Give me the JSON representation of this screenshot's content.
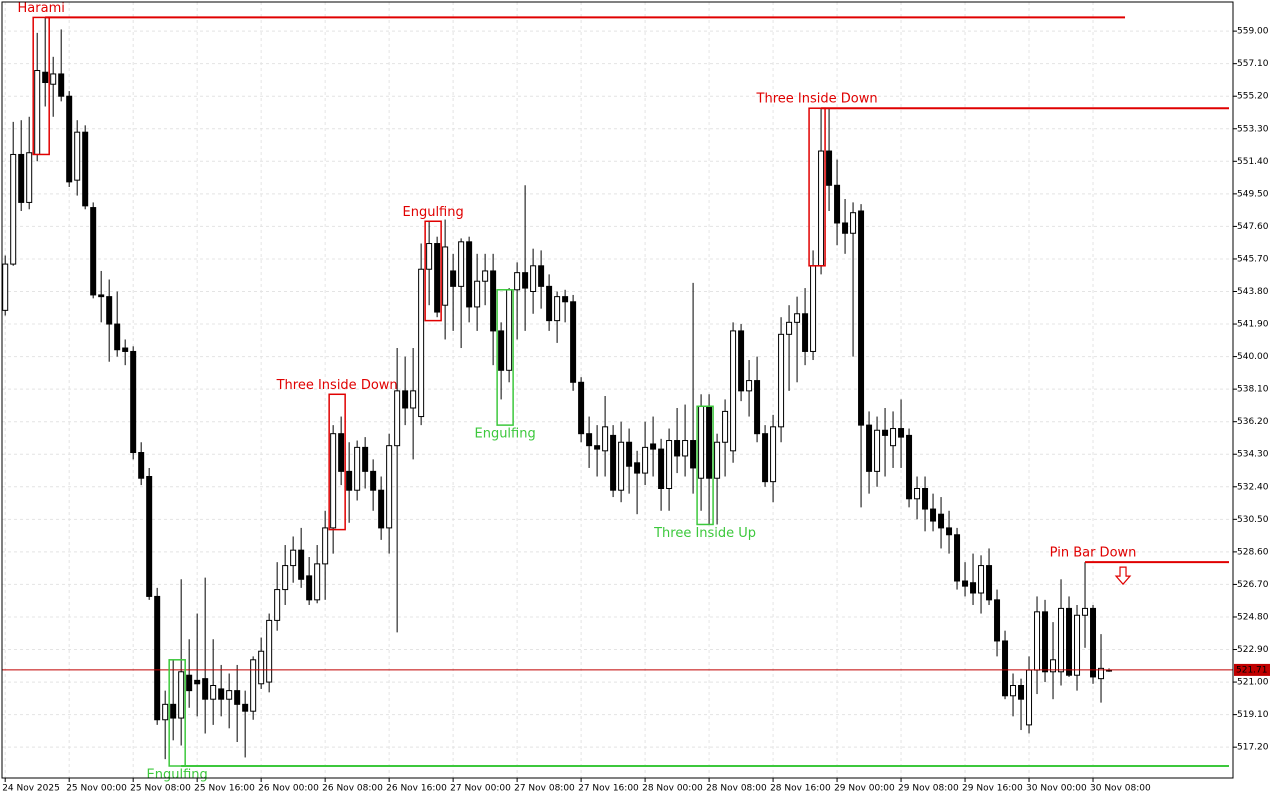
{
  "chart_data": {
    "type": "candlestick",
    "open": [
      542.7,
      545.4,
      551.8,
      549.0,
      551.8,
      556.6,
      555.9,
      556.5,
      555.2,
      550.3,
      553.1,
      548.7,
      543.6,
      543.5,
      541.9,
      540.5,
      540.3,
      534.4,
      533.0,
      526.0,
      518.8,
      519.7,
      518.9,
      521.4,
      521.1,
      521.2,
      520.0,
      520.6,
      520.0,
      520.5,
      519.7,
      519.3,
      520.9,
      521.0,
      524.6,
      526.4,
      527.8,
      528.7,
      527.2,
      525.8,
      527.9,
      530.0,
      535.5,
      533.3,
      532.2,
      534.7,
      533.3,
      532.2,
      530.0,
      534.8,
      538.0,
      537.0,
      536.5,
      545.1,
      546.6,
      543.0,
      545.0,
      544.1,
      546.7,
      542.9,
      544.4,
      545.0,
      541.5,
      539.2,
      543.9,
      544.9,
      543.8,
      545.3,
      544.1,
      542.1,
      543.5,
      543.2,
      538.5,
      535.5,
      534.8,
      534.5,
      535.4,
      532.2,
      535.0,
      533.8,
      533.2,
      534.9,
      534.6,
      532.3,
      535.1,
      534.2,
      535.1,
      532.9,
      537.1,
      532.9,
      535.0,
      534.5,
      541.5,
      538.0,
      538.6,
      535.5,
      532.7,
      535.9,
      541.3,
      542.0,
      542.5,
      540.3,
      545.3,
      552.0,
      550.0,
      547.8,
      547.2,
      548.5,
      536.0,
      533.3,
      535.7,
      534.8,
      535.8,
      535.4,
      531.7,
      532.3,
      531.1,
      530.8,
      530.0,
      529.6,
      526.9,
      526.8,
      526.2,
      527.8,
      525.8,
      523.4,
      520.2,
      520.8,
      518.5,
      521.7,
      525.1,
      521.6,
      521.6,
      525.3,
      521.4,
      524.9,
      525.3,
      521.2,
      521.7
    ],
    "high": [
      545.9,
      553.7,
      553.8,
      554.0,
      558.9,
      559.8,
      557.5,
      559.1,
      555.5,
      553.8,
      553.5,
      549.0,
      545.0,
      544.5,
      543.8,
      541.0,
      540.6,
      535.0,
      533.5,
      526.5,
      520.5,
      522.3,
      527.0,
      523.5,
      525.0,
      527.1,
      523.5,
      522.0,
      521.5,
      522.0,
      520.5,
      522.5,
      523.6,
      525.0,
      528.0,
      529.0,
      529.5,
      530.0,
      528.3,
      529.0,
      531.0,
      536.0,
      536.5,
      535.0,
      535.1,
      535.3,
      534.0,
      533.0,
      535.5,
      540.5,
      540.0,
      540.5,
      546.6,
      547.9,
      547.0,
      548.0,
      546.0,
      546.9,
      547.0,
      546.0,
      546.0,
      546.0,
      542.0,
      544.0,
      545.5,
      550.0,
      546.3,
      546.2,
      544.8,
      543.8,
      543.9,
      543.6,
      538.8,
      536.5,
      536.0,
      537.7,
      536.0,
      536.2,
      535.8,
      534.5,
      536.2,
      536.5,
      535.2,
      535.8,
      537.0,
      537.2,
      544.3,
      537.8,
      537.8,
      535.5,
      537.5,
      542.0,
      541.9,
      539.8,
      540.0,
      536.0,
      536.6,
      542.3,
      543.0,
      543.5,
      544.0,
      546.2,
      554.5,
      554.5,
      551.5,
      549.2,
      549.0,
      548.9,
      536.8,
      536.5,
      537.0,
      536.8,
      537.5,
      535.8,
      533.0,
      533.0,
      532.0,
      531.8,
      531.0,
      530.0,
      528.0,
      528.5,
      528.4,
      528.8,
      526.4,
      524.0,
      521.5,
      521.2,
      522.5,
      526.0,
      525.8,
      524.5,
      527.0,
      526.0,
      525.5,
      528.0,
      525.5,
      523.8,
      521.8
    ],
    "low": [
      542.4,
      545.3,
      548.5,
      548.6,
      551.4,
      554.6,
      554.0,
      554.9,
      549.9,
      549.4,
      548.6,
      543.4,
      542.0,
      539.7,
      540.0,
      539.5,
      534.0,
      532.5,
      525.8,
      518.5,
      516.5,
      517.6,
      517.3,
      519.5,
      519.0,
      518.0,
      518.5,
      519.0,
      518.3,
      517.5,
      516.6,
      518.8,
      520.6,
      520.4,
      524.0,
      525.5,
      526.8,
      526.5,
      525.5,
      525.6,
      525.8,
      528.5,
      532.5,
      530.3,
      531.6,
      532.3,
      531.0,
      529.3,
      528.5,
      523.9,
      536.0,
      534.0,
      536.0,
      543.0,
      542.3,
      541.0,
      541.5,
      540.5,
      542.0,
      541.5,
      543.0,
      539.5,
      537.5,
      538.5,
      541.0,
      541.5,
      542.5,
      542.8,
      541.5,
      540.8,
      542.0,
      538.0,
      535.0,
      533.5,
      533.0,
      533.0,
      531.8,
      531.5,
      532.0,
      530.8,
      532.5,
      533.0,
      531.0,
      531.0,
      533.2,
      533.0,
      532.0,
      531.0,
      530.2,
      530.2,
      533.0,
      533.8,
      537.4,
      536.5,
      535.0,
      532.4,
      531.5,
      535.0,
      538.0,
      538.5,
      539.5,
      539.8,
      544.8,
      548.5,
      546.5,
      546.0,
      540.0,
      531.2,
      532.0,
      532.4,
      533.0,
      533.5,
      533.5,
      531.2,
      530.5,
      529.8,
      529.8,
      528.8,
      528.5,
      526.4,
      526.0,
      525.5,
      525.0,
      525.5,
      522.5,
      520.0,
      519.0,
      518.2,
      518.0,
      520.3,
      521.0,
      520.0,
      520.8,
      521.3,
      520.5,
      523.0,
      520.9,
      519.8,
      521.6
    ],
    "close": [
      545.4,
      551.8,
      549.0,
      551.9,
      556.7,
      556.0,
      556.5,
      555.2,
      550.2,
      553.1,
      548.8,
      543.6,
      543.5,
      541.9,
      540.4,
      540.3,
      534.4,
      532.9,
      526.0,
      518.8,
      519.7,
      518.9,
      521.6,
      520.5,
      520.9,
      520.0,
      520.8,
      520.0,
      520.5,
      519.7,
      519.3,
      522.3,
      522.8,
      524.6,
      526.4,
      527.8,
      528.7,
      527.0,
      525.8,
      527.9,
      530.0,
      535.5,
      533.3,
      532.2,
      534.7,
      533.3,
      532.2,
      530.0,
      534.8,
      538.0,
      537.0,
      538.0,
      545.1,
      546.6,
      542.6,
      546.4,
      544.1,
      546.7,
      542.9,
      544.4,
      545.0,
      541.5,
      539.2,
      543.9,
      544.9,
      544.0,
      545.3,
      544.1,
      542.1,
      543.5,
      543.2,
      538.5,
      535.5,
      534.8,
      534.6,
      535.9,
      532.2,
      535.0,
      533.6,
      533.2,
      534.7,
      534.6,
      532.3,
      535.1,
      534.2,
      535.1,
      533.5,
      537.1,
      532.9,
      535.0,
      536.8,
      541.5,
      538.0,
      538.6,
      535.5,
      532.7,
      535.9,
      541.3,
      542.0,
      542.5,
      540.3,
      545.3,
      552.0,
      550.0,
      547.8,
      547.2,
      548.4,
      536.0,
      533.3,
      535.7,
      535.4,
      535.8,
      535.3,
      531.7,
      532.3,
      531.1,
      530.4,
      530.0,
      529.6,
      526.9,
      526.6,
      526.2,
      527.8,
      525.8,
      523.4,
      520.2,
      520.8,
      520.0,
      521.7,
      525.1,
      521.6,
      522.3,
      525.3,
      521.4,
      524.9,
      525.3,
      521.3,
      521.8,
      521.7
    ],
    "xlim": [
      -0.4,
      153.5
    ],
    "xticks": [
      {
        "value": 0,
        "label": "24 Nov 2025"
      },
      {
        "value": 8,
        "label": "25 Nov 00:00"
      },
      {
        "value": 16,
        "label": "25 Nov 08:00"
      },
      {
        "value": 24,
        "label": "25 Nov 16:00"
      },
      {
        "value": 32,
        "label": "26 Nov 00:00"
      },
      {
        "value": 40,
        "label": "26 Nov 08:00"
      },
      {
        "value": 48,
        "label": "26 Nov 16:00"
      },
      {
        "value": 56,
        "label": "27 Nov 00:00"
      },
      {
        "value": 64,
        "label": "27 Nov 08:00"
      },
      {
        "value": 72,
        "label": "27 Nov 16:00"
      },
      {
        "value": 80,
        "label": "28 Nov 00:00"
      },
      {
        "value": 88,
        "label": "28 Nov 08:00"
      },
      {
        "value": 96,
        "label": "28 Nov 16:00"
      },
      {
        "value": 104,
        "label": "29 Nov 00:00"
      },
      {
        "value": 112,
        "label": "29 Nov 08:00"
      },
      {
        "value": 120,
        "label": "29 Nov 16:00"
      },
      {
        "value": 128,
        "label": "30 Nov 00:00"
      },
      {
        "value": 136,
        "label": "30 Nov 08:00"
      }
    ],
    "ylim": [
      515.4,
      560.7
    ],
    "yticks": [
      {
        "value": 559.0,
        "label": "559.00"
      },
      {
        "value": 557.1,
        "label": "557.10"
      },
      {
        "value": 555.2,
        "label": "555.20"
      },
      {
        "value": 553.3,
        "label": "553.30"
      },
      {
        "value": 551.4,
        "label": "551.40"
      },
      {
        "value": 549.5,
        "label": "549.50"
      },
      {
        "value": 547.6,
        "label": "547.60"
      },
      {
        "value": 545.7,
        "label": "545.70"
      },
      {
        "value": 543.8,
        "label": "543.80"
      },
      {
        "value": 541.9,
        "label": "541.90"
      },
      {
        "value": 540.0,
        "label": "540.00"
      },
      {
        "value": 538.1,
        "label": "538.10"
      },
      {
        "value": 536.2,
        "label": "536.20"
      },
      {
        "value": 534.3,
        "label": "534.30"
      },
      {
        "value": 532.4,
        "label": "532.40"
      },
      {
        "value": 530.5,
        "label": "530.50"
      },
      {
        "value": 528.6,
        "label": "528.60"
      },
      {
        "value": 526.7,
        "label": "526.70"
      },
      {
        "value": 524.8,
        "label": "524.80"
      },
      {
        "value": 522.9,
        "label": "522.90"
      },
      {
        "value": 521.0,
        "label": "521.00"
      },
      {
        "value": 519.1,
        "label": "519.10"
      },
      {
        "value": 517.2,
        "label": "517.20"
      }
    ],
    "grid": true,
    "bull_color": "#ffffff",
    "bear_color": "#000000",
    "last_price": 521.71,
    "last_price_color": "#c00000",
    "patterns": [
      {
        "label": "Harami",
        "color": "#e00000",
        "from": 4,
        "to": 5,
        "high": 559.8,
        "low": 551.8,
        "level": 559.8,
        "line_to": 140
      },
      {
        "label": "Three Inside Down",
        "color": "#e00000",
        "from": 41,
        "to": 42,
        "high": 537.8,
        "low": 529.9
      },
      {
        "label": "Engulfing",
        "color": "#e00000",
        "from": 53,
        "to": 54,
        "high": 547.9,
        "low": 542.1
      },
      {
        "label": "Engulfing",
        "color": "#3cc83c",
        "from": 62,
        "to": 63,
        "high": 543.9,
        "low": 536.0
      },
      {
        "label": "Three Inside Up",
        "color": "#3cc83c",
        "from": 87,
        "to": 88,
        "high": 537.1,
        "low": 530.2
      },
      {
        "label": "Three Inside Down",
        "color": "#e00000",
        "from": 101,
        "to": 102,
        "high": 554.5,
        "low": 545.3,
        "level": 554.5,
        "line_to": 153
      },
      {
        "label": "Pin Bar Down",
        "color": "#e00000",
        "from": 135,
        "to": 135,
        "level": 528.0,
        "line_to": 153,
        "marker": "arrow-down"
      },
      {
        "label": "Engulfing",
        "color": "#3cc83c",
        "from": 21,
        "to": 22,
        "high": 522.3,
        "low": 516.1,
        "level": 516.1,
        "line_to": 153
      }
    ]
  }
}
